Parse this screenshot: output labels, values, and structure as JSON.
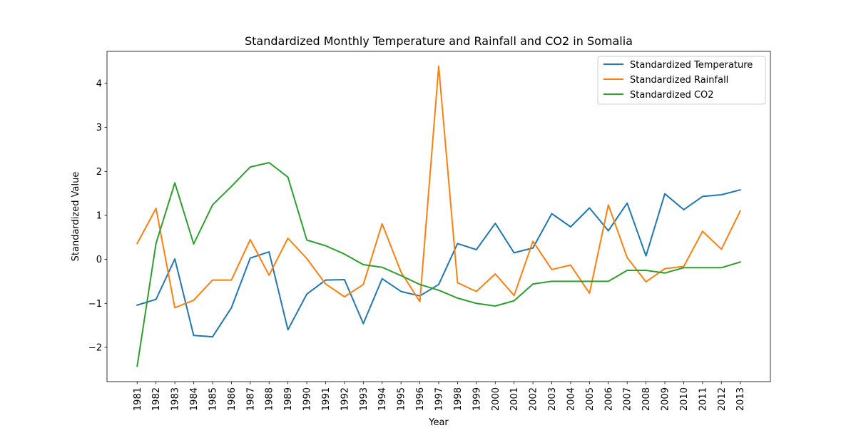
{
  "chart_data": {
    "type": "line",
    "title": "Standardized Monthly Temperature and Rainfall and CO2 in Somalia",
    "xlabel": "Year",
    "ylabel": "Standardized Value",
    "x": [
      "1981",
      "1982",
      "1983",
      "1984",
      "1985",
      "1986",
      "1987",
      "1988",
      "1989",
      "1990",
      "1991",
      "1992",
      "1993",
      "1994",
      "1995",
      "1996",
      "1997",
      "1998",
      "1999",
      "2000",
      "2001",
      "2002",
      "2003",
      "2004",
      "2005",
      "2006",
      "2007",
      "2008",
      "2009",
      "2010",
      "2011",
      "2012",
      "2013"
    ],
    "yticks": [
      -2,
      -1,
      0,
      1,
      2,
      3,
      4
    ],
    "ytick_labels": [
      "−2",
      "−1",
      "0",
      "1",
      "2",
      "3",
      "4"
    ],
    "ylim": [
      -2.78,
      4.73
    ],
    "grid": false,
    "legend_position": "top-right",
    "series": [
      {
        "name": "Standardized Temperature",
        "color": "#1f77b4",
        "values": [
          -1.04,
          -0.91,
          0.01,
          -1.73,
          -1.76,
          -1.1,
          0.03,
          0.17,
          -1.6,
          -0.79,
          -0.47,
          -0.46,
          -1.46,
          -0.44,
          -0.73,
          -0.83,
          -0.57,
          0.36,
          0.22,
          0.82,
          0.15,
          0.26,
          1.04,
          0.74,
          1.17,
          0.65,
          1.28,
          0.08,
          1.49,
          1.13,
          1.43,
          1.47,
          1.58
        ]
      },
      {
        "name": "Standardized Rainfall",
        "color": "#ff7f0e",
        "values": [
          0.36,
          1.16,
          -1.1,
          -0.93,
          -0.47,
          -0.47,
          0.45,
          -0.36,
          0.48,
          0.02,
          -0.56,
          -0.85,
          -0.57,
          0.81,
          -0.29,
          -0.96,
          4.39,
          -0.53,
          -0.73,
          -0.33,
          -0.82,
          0.41,
          -0.23,
          -0.13,
          -0.77,
          1.24,
          0.04,
          -0.51,
          -0.21,
          -0.16,
          0.64,
          0.23,
          1.1
        ]
      },
      {
        "name": "Standardized CO2",
        "color": "#2ca02c",
        "values": [
          -2.43,
          0.36,
          1.74,
          0.35,
          1.24,
          1.66,
          2.1,
          2.2,
          1.87,
          0.44,
          0.31,
          0.12,
          -0.12,
          -0.18,
          -0.37,
          -0.57,
          -0.7,
          -0.88,
          -1.0,
          -1.06,
          -0.94,
          -0.56,
          -0.5,
          -0.5,
          -0.5,
          -0.5,
          -0.25,
          -0.25,
          -0.31,
          -0.19,
          -0.19,
          -0.19,
          -0.06
        ]
      }
    ]
  }
}
